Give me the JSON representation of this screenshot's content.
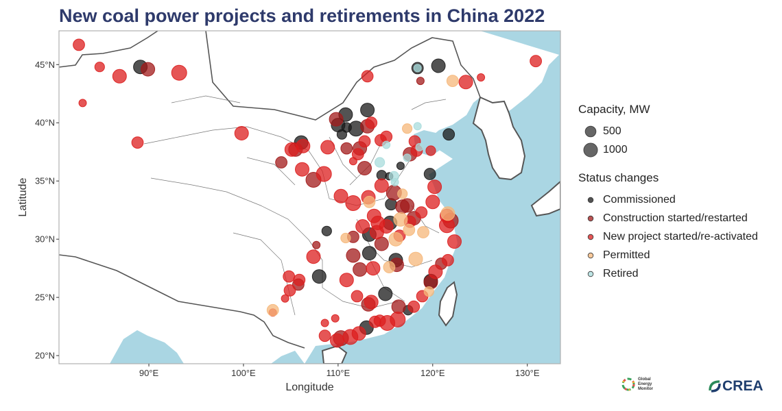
{
  "header": {
    "title": "New coal power projects and retirements in China 2022"
  },
  "legend": {
    "capacity_title": "Capacity, MW",
    "capacity_items": [
      {
        "label": "500",
        "value": 500
      },
      {
        "label": "1000",
        "value": 1000
      }
    ],
    "status_title": "Status changes",
    "status_items": [
      {
        "label": "Commissioned",
        "color": "#1a1a1a"
      },
      {
        "label": "Construction started/restarted",
        "color": "#a11a1a"
      },
      {
        "label": "New project started/re-activated",
        "color": "#dc1e1e"
      },
      {
        "label": "Permitted",
        "color": "#f5b77a"
      },
      {
        "label": "Retired",
        "color": "#a8dcdc"
      }
    ]
  },
  "logos": {
    "gem_lines": [
      "Global",
      "Energy",
      "Monitor"
    ],
    "crea_text": "CREA"
  },
  "chart_data": {
    "type": "scatter",
    "title": "New coal power projects and retirements in China 2022",
    "xlabel": "Longitude",
    "ylabel": "Latitude",
    "xlim": [
      80.5,
      133.5
    ],
    "ylim": [
      19.3,
      47.9
    ],
    "xticks": [
      {
        "value": 90,
        "label": "90°E"
      },
      {
        "value": 100,
        "label": "100°E"
      },
      {
        "value": 110,
        "label": "110°E"
      },
      {
        "value": 120,
        "label": "120°E"
      },
      {
        "value": 130,
        "label": "130°E"
      }
    ],
    "yticks": [
      {
        "value": 20,
        "label": "20°N"
      },
      {
        "value": 25,
        "label": "25°N"
      },
      {
        "value": 30,
        "label": "30°N"
      },
      {
        "value": 35,
        "label": "35°N"
      },
      {
        "value": 40,
        "label": "40°N"
      },
      {
        "value": 45,
        "label": "45°N"
      }
    ],
    "background": {
      "sea": "#aad6e3",
      "land": "#ffffff",
      "border": "#555555",
      "frame": "#b0b0b0"
    },
    "size_legend_unit": "Capacity, MW",
    "series": [
      {
        "name": "Commissioned",
        "color": "#1a1a1a",
        "points": [
          {
            "lon": 89.1,
            "lat": 44.8,
            "cap": 1000
          },
          {
            "lon": 106.1,
            "lat": 38.3,
            "cap": 1000
          },
          {
            "lon": 110.0,
            "lat": 39.8,
            "cap": 1000
          },
          {
            "lon": 110.8,
            "lat": 40.7,
            "cap": 1000
          },
          {
            "lon": 111.9,
            "lat": 39.5,
            "cap": 1200
          },
          {
            "lon": 113.1,
            "lat": 41.1,
            "cap": 1000
          },
          {
            "lon": 120.6,
            "lat": 44.9,
            "cap": 1000
          },
          {
            "lon": 118.4,
            "lat": 44.7,
            "cap": 700
          },
          {
            "lon": 121.7,
            "lat": 39.0,
            "cap": 700
          },
          {
            "lon": 119.7,
            "lat": 35.6,
            "cap": 700
          },
          {
            "lon": 115.5,
            "lat": 31.4,
            "cap": 1000
          },
          {
            "lon": 113.3,
            "lat": 30.4,
            "cap": 1000
          },
          {
            "lon": 113.3,
            "lat": 28.8,
            "cap": 1000
          },
          {
            "lon": 116.1,
            "lat": 28.2,
            "cap": 1000
          },
          {
            "lon": 115.0,
            "lat": 25.3,
            "cap": 1000
          },
          {
            "lon": 113.0,
            "lat": 22.4,
            "cap": 1000
          },
          {
            "lon": 119.8,
            "lat": 26.4,
            "cap": 1000
          },
          {
            "lon": 108.0,
            "lat": 26.8,
            "cap": 1000
          },
          {
            "lon": 108.8,
            "lat": 30.7,
            "cap": 500
          },
          {
            "lon": 110.4,
            "lat": 39.0,
            "cap": 500
          },
          {
            "lon": 115.6,
            "lat": 33.0,
            "cap": 700
          },
          {
            "lon": 114.6,
            "lat": 35.5,
            "cap": 500
          },
          {
            "lon": 117.4,
            "lat": 23.9,
            "cap": 500
          },
          {
            "lon": 110.9,
            "lat": 39.6,
            "cap": 500
          },
          {
            "lon": 116.6,
            "lat": 36.3,
            "cap": 300
          },
          {
            "lon": 115.4,
            "lat": 35.4,
            "cap": 300
          }
        ]
      },
      {
        "name": "Construction started/restarted",
        "color": "#a11a1a",
        "points": [
          {
            "lon": 89.9,
            "lat": 44.6,
            "cap": 1000
          },
          {
            "lon": 105.5,
            "lat": 37.7,
            "cap": 1000
          },
          {
            "lon": 107.4,
            "lat": 35.1,
            "cap": 1200
          },
          {
            "lon": 109.8,
            "lat": 40.3,
            "cap": 1000
          },
          {
            "lon": 112.3,
            "lat": 37.8,
            "cap": 1000
          },
          {
            "lon": 112.8,
            "lat": 36.1,
            "cap": 1000
          },
          {
            "lon": 113.1,
            "lat": 39.7,
            "cap": 1000
          },
          {
            "lon": 115.9,
            "lat": 34.0,
            "cap": 1200
          },
          {
            "lon": 116.8,
            "lat": 32.8,
            "cap": 1000
          },
          {
            "lon": 117.3,
            "lat": 32.9,
            "cap": 1000
          },
          {
            "lon": 111.6,
            "lat": 28.6,
            "cap": 1000
          },
          {
            "lon": 114.6,
            "lat": 29.6,
            "cap": 1000
          },
          {
            "lon": 116.2,
            "lat": 27.8,
            "cap": 1000
          },
          {
            "lon": 121.9,
            "lat": 31.6,
            "cap": 1200
          },
          {
            "lon": 119.8,
            "lat": 26.3,
            "cap": 1000
          },
          {
            "lon": 113.2,
            "lat": 24.4,
            "cap": 1000
          },
          {
            "lon": 112.3,
            "lat": 27.4,
            "cap": 1000
          },
          {
            "lon": 110.3,
            "lat": 21.5,
            "cap": 1200
          },
          {
            "lon": 104.0,
            "lat": 36.6,
            "cap": 700
          },
          {
            "lon": 110.9,
            "lat": 37.8,
            "cap": 700
          },
          {
            "lon": 117.6,
            "lat": 37.3,
            "cap": 1000
          },
          {
            "lon": 118.0,
            "lat": 31.8,
            "cap": 1000
          },
          {
            "lon": 120.9,
            "lat": 27.9,
            "cap": 700
          },
          {
            "lon": 111.6,
            "lat": 30.2,
            "cap": 700
          },
          {
            "lon": 116.4,
            "lat": 24.2,
            "cap": 1000
          },
          {
            "lon": 105.8,
            "lat": 26.1,
            "cap": 700
          },
          {
            "lon": 107.7,
            "lat": 29.5,
            "cap": 300
          },
          {
            "lon": 118.7,
            "lat": 43.6,
            "cap": 300
          }
        ]
      },
      {
        "name": "New project started/re-activated",
        "color": "#dc1e1e",
        "points": [
          {
            "lon": 82.6,
            "lat": 46.7,
            "cap": 700
          },
          {
            "lon": 84.8,
            "lat": 44.8,
            "cap": 500
          },
          {
            "lon": 86.9,
            "lat": 44.0,
            "cap": 1000
          },
          {
            "lon": 93.2,
            "lat": 44.3,
            "cap": 1200
          },
          {
            "lon": 88.8,
            "lat": 38.3,
            "cap": 700
          },
          {
            "lon": 83.0,
            "lat": 41.7,
            "cap": 300
          },
          {
            "lon": 113.1,
            "lat": 44.0,
            "cap": 700
          },
          {
            "lon": 99.8,
            "lat": 39.1,
            "cap": 1000
          },
          {
            "lon": 105.1,
            "lat": 37.7,
            "cap": 1000
          },
          {
            "lon": 106.3,
            "lat": 38.0,
            "cap": 1000
          },
          {
            "lon": 108.9,
            "lat": 37.9,
            "cap": 1000
          },
          {
            "lon": 108.5,
            "lat": 35.6,
            "cap": 1200
          },
          {
            "lon": 106.2,
            "lat": 36.0,
            "cap": 1000
          },
          {
            "lon": 112.1,
            "lat": 37.3,
            "cap": 700
          },
          {
            "lon": 112.8,
            "lat": 38.4,
            "cap": 700
          },
          {
            "lon": 113.5,
            "lat": 40.0,
            "cap": 700
          },
          {
            "lon": 114.5,
            "lat": 38.5,
            "cap": 700
          },
          {
            "lon": 115.1,
            "lat": 38.8,
            "cap": 700
          },
          {
            "lon": 114.6,
            "lat": 34.6,
            "cap": 1000
          },
          {
            "lon": 110.3,
            "lat": 33.7,
            "cap": 1000
          },
          {
            "lon": 111.6,
            "lat": 33.1,
            "cap": 1200
          },
          {
            "lon": 113.2,
            "lat": 33.6,
            "cap": 1000
          },
          {
            "lon": 113.8,
            "lat": 32.0,
            "cap": 1000
          },
          {
            "lon": 112.6,
            "lat": 31.1,
            "cap": 1000
          },
          {
            "lon": 114.1,
            "lat": 30.6,
            "cap": 1000
          },
          {
            "lon": 114.2,
            "lat": 31.4,
            "cap": 1000
          },
          {
            "lon": 115.1,
            "lat": 31.1,
            "cap": 1000
          },
          {
            "lon": 110.9,
            "lat": 26.5,
            "cap": 1000
          },
          {
            "lon": 113.7,
            "lat": 27.5,
            "cap": 1000
          },
          {
            "lon": 112.0,
            "lat": 25.1,
            "cap": 700
          },
          {
            "lon": 113.5,
            "lat": 24.6,
            "cap": 1000
          },
          {
            "lon": 114.4,
            "lat": 23.0,
            "cap": 700
          },
          {
            "lon": 115.2,
            "lat": 22.8,
            "cap": 1200
          },
          {
            "lon": 116.3,
            "lat": 23.1,
            "cap": 1200
          },
          {
            "lon": 113.9,
            "lat": 22.9,
            "cap": 700
          },
          {
            "lon": 111.3,
            "lat": 21.6,
            "cap": 1200
          },
          {
            "lon": 112.2,
            "lat": 21.9,
            "cap": 1000
          },
          {
            "lon": 109.9,
            "lat": 21.3,
            "cap": 1000
          },
          {
            "lon": 108.6,
            "lat": 21.7,
            "cap": 700
          },
          {
            "lon": 104.9,
            "lat": 25.6,
            "cap": 700
          },
          {
            "lon": 105.9,
            "lat": 26.5,
            "cap": 700
          },
          {
            "lon": 104.8,
            "lat": 26.8,
            "cap": 700
          },
          {
            "lon": 104.4,
            "lat": 24.9,
            "cap": 300
          },
          {
            "lon": 107.4,
            "lat": 28.5,
            "cap": 1000
          },
          {
            "lon": 103.1,
            "lat": 23.7,
            "cap": 300
          },
          {
            "lon": 109.7,
            "lat": 23.2,
            "cap": 300
          },
          {
            "lon": 108.6,
            "lat": 22.8,
            "cap": 300
          },
          {
            "lon": 118.1,
            "lat": 38.4,
            "cap": 700
          },
          {
            "lon": 118.3,
            "lat": 37.6,
            "cap": 700
          },
          {
            "lon": 119.8,
            "lat": 37.6,
            "cap": 500
          },
          {
            "lon": 120.2,
            "lat": 34.5,
            "cap": 1000
          },
          {
            "lon": 120.0,
            "lat": 33.2,
            "cap": 1000
          },
          {
            "lon": 118.8,
            "lat": 32.3,
            "cap": 700
          },
          {
            "lon": 121.5,
            "lat": 32.0,
            "cap": 1000
          },
          {
            "lon": 121.5,
            "lat": 31.2,
            "cap": 1200
          },
          {
            "lon": 122.3,
            "lat": 29.8,
            "cap": 1000
          },
          {
            "lon": 121.6,
            "lat": 28.2,
            "cap": 700
          },
          {
            "lon": 120.3,
            "lat": 27.2,
            "cap": 1000
          },
          {
            "lon": 118.9,
            "lat": 25.1,
            "cap": 700
          },
          {
            "lon": 118.0,
            "lat": 24.2,
            "cap": 700
          },
          {
            "lon": 123.5,
            "lat": 43.5,
            "cap": 1000
          },
          {
            "lon": 125.1,
            "lat": 43.9,
            "cap": 300
          },
          {
            "lon": 130.9,
            "lat": 45.3,
            "cap": 700
          },
          {
            "lon": 116.5,
            "lat": 30.3,
            "cap": 700
          },
          {
            "lon": 117.6,
            "lat": 31.5,
            "cap": 700
          },
          {
            "lon": 111.6,
            "lat": 36.7,
            "cap": 300
          }
        ]
      },
      {
        "name": "Permitted",
        "color": "#f5b77a",
        "points": [
          {
            "lon": 122.1,
            "lat": 43.6,
            "cap": 700
          },
          {
            "lon": 117.3,
            "lat": 39.5,
            "cap": 500
          },
          {
            "lon": 116.6,
            "lat": 31.7,
            "cap": 1000
          },
          {
            "lon": 117.5,
            "lat": 30.8,
            "cap": 700
          },
          {
            "lon": 116.1,
            "lat": 30.0,
            "cap": 1000
          },
          {
            "lon": 119.0,
            "lat": 30.6,
            "cap": 700
          },
          {
            "lon": 121.6,
            "lat": 32.2,
            "cap": 1000
          },
          {
            "lon": 118.2,
            "lat": 28.3,
            "cap": 1000
          },
          {
            "lon": 115.4,
            "lat": 27.6,
            "cap": 700
          },
          {
            "lon": 110.8,
            "lat": 30.1,
            "cap": 500
          },
          {
            "lon": 103.1,
            "lat": 23.9,
            "cap": 700
          },
          {
            "lon": 119.6,
            "lat": 25.5,
            "cap": 500
          },
          {
            "lon": 113.3,
            "lat": 33.2,
            "cap": 700
          },
          {
            "lon": 116.8,
            "lat": 33.9,
            "cap": 500
          }
        ]
      },
      {
        "name": "Retired",
        "color": "#a8dcdc",
        "points": [
          {
            "lon": 114.4,
            "lat": 36.6,
            "cap": 500
          },
          {
            "lon": 118.4,
            "lat": 39.7,
            "cap": 300
          },
          {
            "lon": 117.3,
            "lat": 37.0,
            "cap": 300
          },
          {
            "lon": 115.9,
            "lat": 35.4,
            "cap": 500
          },
          {
            "lon": 118.4,
            "lat": 44.7,
            "cap": 300
          },
          {
            "lon": 115.1,
            "lat": 38.1,
            "cap": 300
          },
          {
            "lon": 118.6,
            "lat": 37.9,
            "cap": 300
          },
          {
            "lon": 116.0,
            "lat": 34.9,
            "cap": 300
          }
        ]
      }
    ]
  }
}
